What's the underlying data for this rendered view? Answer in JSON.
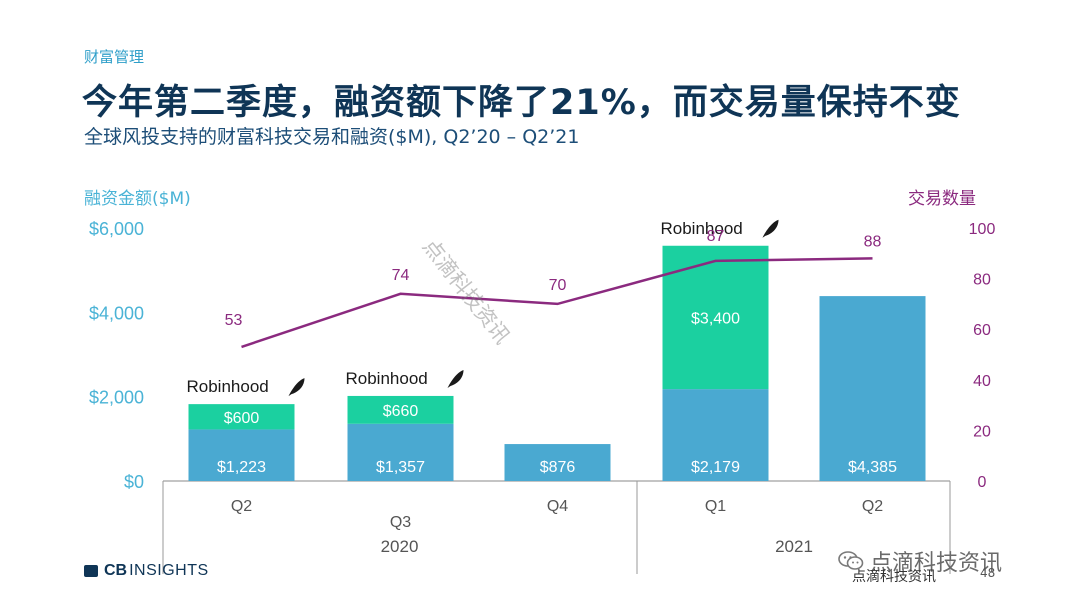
{
  "header": {
    "category": "财富管理",
    "headline": "今年第二季度，融资额下降了21%，而交易量保持不变",
    "subtitle": "全球风投支持的财富科技交易和融资($M), Q2’20 – Q2’21"
  },
  "footer": {
    "logo_cb": "CB",
    "logo_rest": "INSIGHTS",
    "wechat_brand": "点滴科技资讯",
    "source": "点滴科技资讯",
    "page_number": "48"
  },
  "watermark": "点滴科技资讯",
  "colors": {
    "base_bar": "#4aa9d1",
    "robinhood_bar": "#1bd0a0",
    "deal_line": "#8b2a7f",
    "left_axis": "#4ab3d6",
    "right_axis": "#8b2a7f",
    "text_dark": "#0f3556"
  },
  "chart_data": {
    "type": "bar",
    "left_axis_title": "融资金额($M)",
    "right_axis_title": "交易数量",
    "left_ticks": [
      "$0",
      "$2,000",
      "$4,000",
      "$6,000"
    ],
    "right_ticks": [
      "0",
      "20",
      "40",
      "60",
      "80",
      "100"
    ],
    "ylim_left": [
      0,
      6000
    ],
    "ylim_right": [
      0,
      100
    ],
    "categories": [
      "Q2",
      "Q3",
      "Q4",
      "Q1",
      "Q2"
    ],
    "year_groups": [
      {
        "label": "2020",
        "span": [
          0,
          2
        ]
      },
      {
        "label": "2021",
        "span": [
          3,
          4
        ]
      }
    ],
    "series": [
      {
        "values": [
          1223,
          1357,
          876,
          2179,
          4385
        ],
        "labels": [
          "$1,223",
          "$1,357",
          "$876",
          "$2,179",
          "$4,385"
        ]
      },
      {
        "values": [
          600,
          660,
          0,
          3400,
          0
        ],
        "labels": [
          "$600",
          "$660",
          "",
          "$3,400",
          ""
        ]
      },
      {
        "values": [
          53,
          74,
          70,
          87,
          88
        ],
        "labels": [
          "53",
          "74",
          "70",
          "87",
          "88"
        ]
      }
    ],
    "annotations": [
      "Robinhood",
      "Robinhood",
      "",
      "Robinhood",
      ""
    ]
  }
}
